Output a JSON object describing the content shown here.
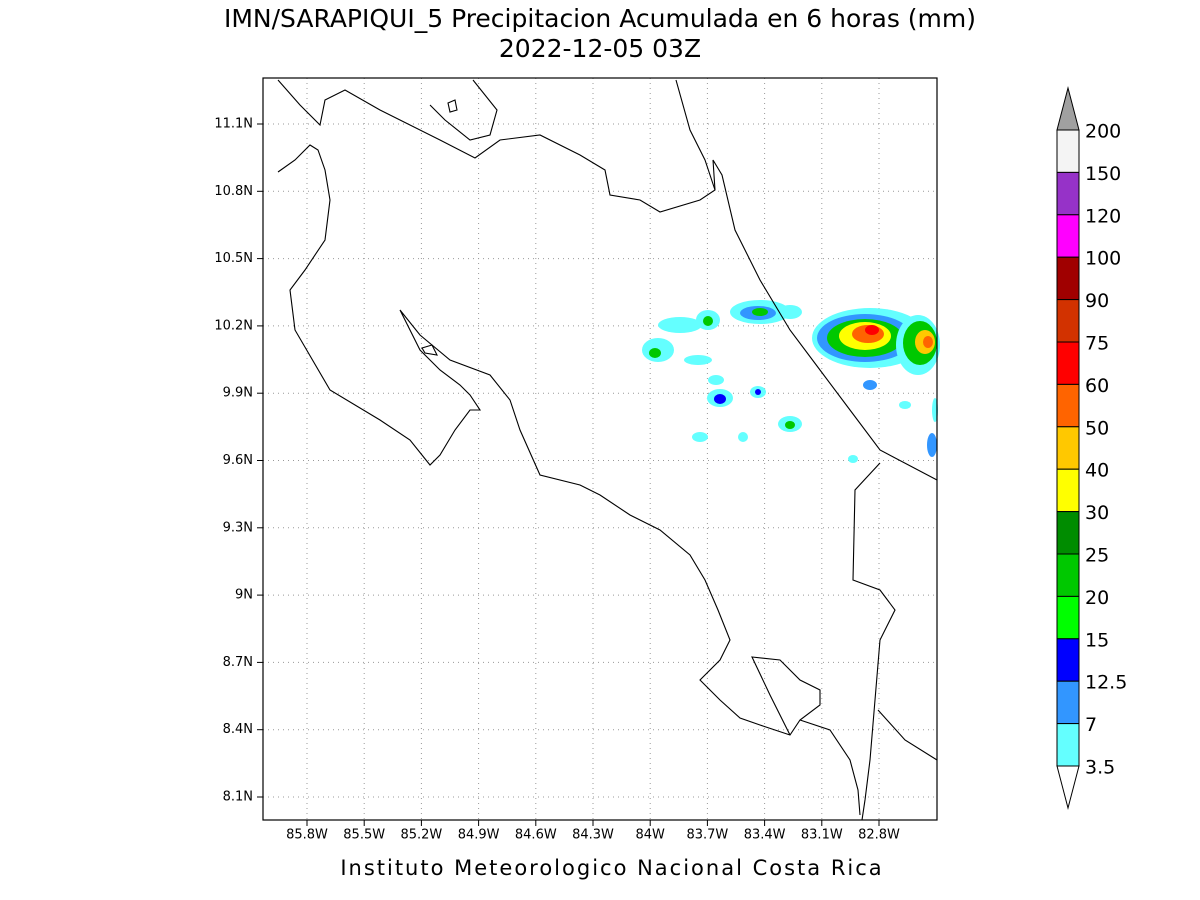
{
  "title": "IMN/SARAPIQUI_5 Precipitacion Acumulada en 6 horas (mm)",
  "subtitle": "2022-12-05 03Z",
  "footer": "Instituto Meteorologico Nacional Costa Rica",
  "map": {
    "lon_labels": [
      "85.8W",
      "85.5W",
      "85.2W",
      "84.9W",
      "84.6W",
      "84.3W",
      "84W",
      "83.7W",
      "83.4W",
      "83.1W",
      "82.8W"
    ],
    "lat_labels": [
      "11.1N",
      "10.8N",
      "10.5N",
      "10.2N",
      "9.9N",
      "9.6N",
      "9.3N",
      "9N",
      "8.7N",
      "8.4N",
      "8.1N"
    ]
  },
  "colorbar": {
    "top_color": "#a0a0a0",
    "bottom_color": "#ffffff",
    "levels": [
      {
        "label": "200",
        "color": "#f4f4f4"
      },
      {
        "label": "150",
        "color": "#9632c8"
      },
      {
        "label": "120",
        "color": "#ff00ff"
      },
      {
        "label": "100",
        "color": "#a00000"
      },
      {
        "label": "90",
        "color": "#d23200"
      },
      {
        "label": "75",
        "color": "#ff0000"
      },
      {
        "label": "60",
        "color": "#ff6400"
      },
      {
        "label": "50",
        "color": "#ffc800"
      },
      {
        "label": "40",
        "color": "#ffff00"
      },
      {
        "label": "30",
        "color": "#008c00"
      },
      {
        "label": "25",
        "color": "#00c800"
      },
      {
        "label": "20",
        "color": "#00ff00"
      },
      {
        "label": "15",
        "color": "#0000ff"
      },
      {
        "label": "12.5",
        "color": "#3296ff"
      },
      {
        "label": "7",
        "color": "#64ffff"
      },
      {
        "label": "3.5",
        "color": null
      }
    ]
  }
}
